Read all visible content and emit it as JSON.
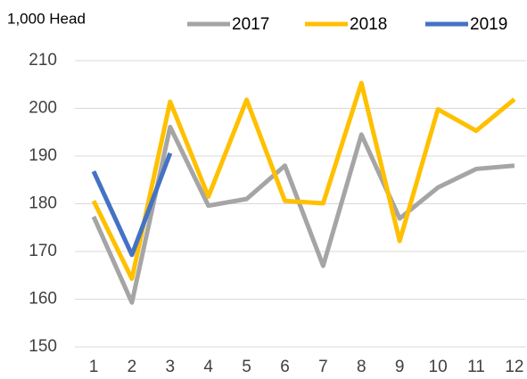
{
  "chart_data": {
    "type": "line",
    "y_label": "1,000 Head",
    "categories": [
      "1",
      "2",
      "3",
      "4",
      "5",
      "6",
      "7",
      "8",
      "9",
      "10",
      "11",
      "12"
    ],
    "series": [
      {
        "name": "2017",
        "color": "#a5a5a5",
        "values": [
          177.3,
          159.3,
          196.1,
          179.6,
          181.0,
          188.0,
          167.0,
          194.5,
          176.9,
          183.4,
          187.3,
          188.0
        ]
      },
      {
        "name": "2018",
        "color": "#ffc000",
        "values": [
          180.6,
          164.3,
          201.4,
          181.5,
          201.8,
          180.6,
          180.1,
          205.3,
          172.2,
          199.8,
          195.3,
          201.9
        ]
      },
      {
        "name": "2019",
        "color": "#4472c4",
        "values": [
          186.8,
          169.3,
          190.6,
          null,
          null,
          null,
          null,
          null,
          null,
          null,
          null,
          null
        ]
      }
    ],
    "ylim": [
      150,
      210
    ],
    "yticks": [
      150,
      160,
      170,
      180,
      190,
      200,
      210
    ],
    "grid": true,
    "legend": "top"
  }
}
